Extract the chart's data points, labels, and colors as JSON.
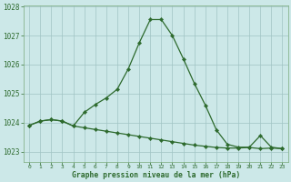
{
  "x": [
    0,
    1,
    2,
    3,
    4,
    5,
    6,
    7,
    8,
    9,
    10,
    11,
    12,
    13,
    14,
    15,
    16,
    17,
    18,
    19,
    20,
    21,
    22,
    23
  ],
  "y_flat": [
    1023.9,
    1024.05,
    1024.1,
    1024.05,
    1023.88,
    1023.82,
    1023.76,
    1023.7,
    1023.64,
    1023.58,
    1023.52,
    1023.46,
    1023.4,
    1023.34,
    1023.28,
    1023.22,
    1023.18,
    1023.14,
    1023.12,
    1023.12,
    1023.14,
    1023.1,
    1023.12,
    1023.1
  ],
  "y_main": [
    1023.9,
    1024.05,
    1024.1,
    1024.05,
    1023.88,
    1024.35,
    1024.62,
    1024.85,
    1025.15,
    1025.85,
    1026.75,
    1027.55,
    1027.55,
    1027.0,
    1026.2,
    1025.35,
    1024.6,
    1023.75,
    1023.25,
    1023.15,
    1023.15,
    1023.55,
    1023.15,
    1023.1
  ],
  "ylim": [
    1022.65,
    1028.05
  ],
  "yticks": [
    1023,
    1024,
    1025,
    1026,
    1027,
    1028
  ],
  "xticks": [
    0,
    1,
    2,
    3,
    4,
    5,
    6,
    7,
    8,
    9,
    10,
    11,
    12,
    13,
    14,
    15,
    16,
    17,
    18,
    19,
    20,
    21,
    22,
    23
  ],
  "line_color": "#2d6a2d",
  "bg_color": "#cce8e8",
  "grid_color": "#a0c4c4",
  "xlabel": "Graphe pression niveau de la mer (hPa)",
  "markersize": 2.2,
  "linewidth": 0.9
}
